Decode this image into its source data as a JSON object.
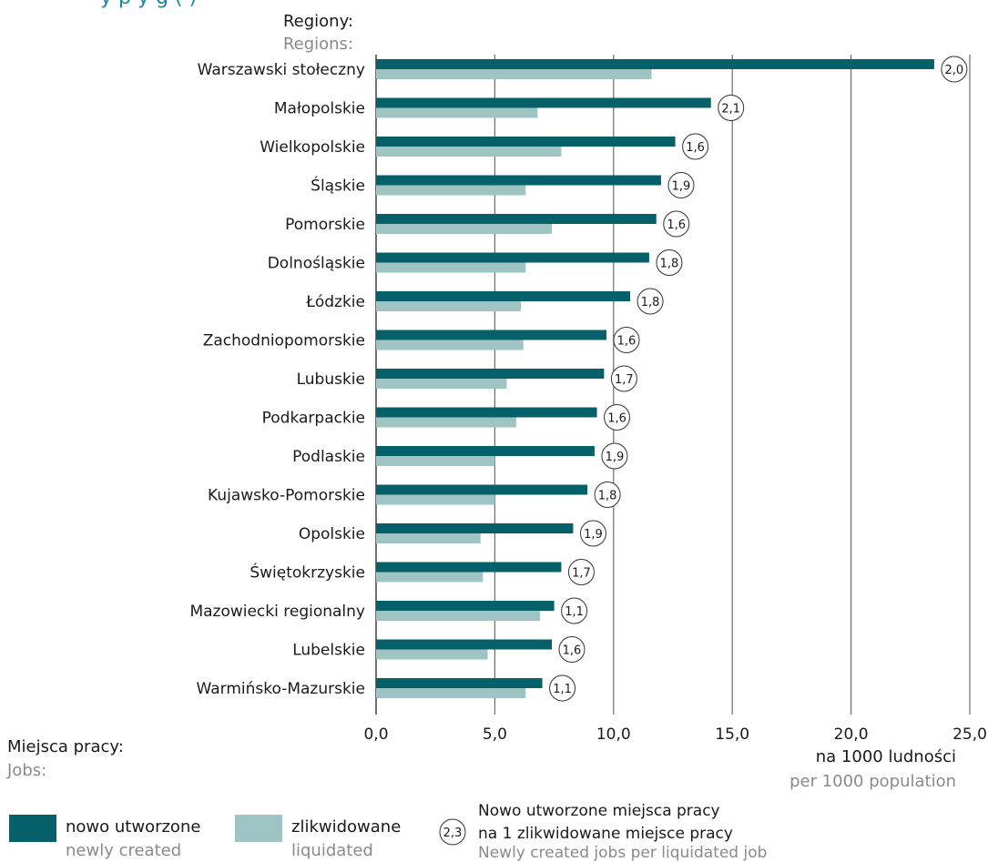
{
  "title_fragment": "y     p     y  g   (    )",
  "chart_data": {
    "type": "bar",
    "orientation": "horizontal",
    "region_label": "Regiony:",
    "region_label_en": "Regions:",
    "categories": [
      "Warszawski stołeczny",
      "Małopolskie",
      "Wielkopolskie",
      "Śląskie",
      "Pomorskie",
      "Dolnośląskie",
      "Łódzkie",
      "Zachodniopomorskie",
      "Lubuskie",
      "Podkarpackie",
      "Podlaskie",
      "Kujawsko-Pomorskie",
      "Opolskie",
      "Świętokrzyskie",
      "Mazowiecki regionalny",
      "Lubelskie",
      "Warmińsko-Mazurskie"
    ],
    "series": [
      {
        "name": "nowo utworzone",
        "name_en": "newly created",
        "color": "#05606a",
        "values": [
          23.5,
          14.1,
          12.6,
          12.0,
          11.8,
          11.5,
          10.7,
          9.7,
          9.6,
          9.3,
          9.2,
          8.9,
          8.3,
          7.8,
          7.5,
          7.4,
          7.0
        ]
      },
      {
        "name": "zlikwidowane",
        "name_en": "liquidated",
        "color": "#9fc4c4",
        "values": [
          11.6,
          6.8,
          7.8,
          6.3,
          7.4,
          6.3,
          6.1,
          6.2,
          5.5,
          5.9,
          5.0,
          5.0,
          4.4,
          4.5,
          6.9,
          4.7,
          6.3
        ]
      }
    ],
    "ratios": [
      "2,0",
      "2,1",
      "1,6",
      "1,9",
      "1,6",
      "1,8",
      "1,8",
      "1,6",
      "1,7",
      "1,6",
      "1,9",
      "1,8",
      "1,9",
      "1,7",
      "1,1",
      "1,6",
      "1,1"
    ],
    "xlim": [
      0,
      25
    ],
    "xticks": [
      "0,0",
      "5,0",
      "10,0",
      "15,0",
      "20,0",
      "25,0"
    ],
    "xlabel": "na 1000 ludności",
    "xlabel_en": "per 1000 population",
    "grid": true
  },
  "legend": {
    "title": "Miejsca pracy:",
    "title_en": "Jobs:",
    "items": [
      {
        "label": "nowo utworzone",
        "label_en": "newly created",
        "color": "#05606a"
      },
      {
        "label": "zlikwidowane",
        "label_en": "liquidated",
        "color": "#9fc4c4"
      }
    ],
    "ratio_sample": "2,3",
    "ratio_line1": "Nowo utworzone miejsca pracy",
    "ratio_line2": "na 1 zlikwidowane miejsce pracy",
    "ratio_line3": "Newly created jobs per liquidated job"
  }
}
